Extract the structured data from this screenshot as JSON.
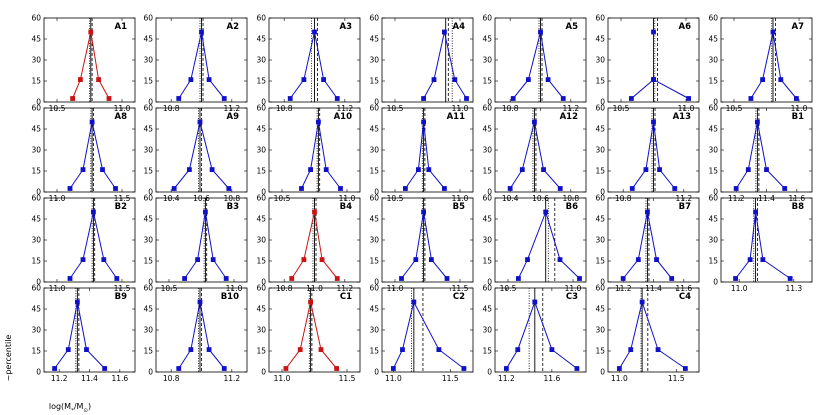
{
  "chart_data": {
    "type": "line",
    "ylabel": "~percentile",
    "ylim": [
      0,
      60
    ],
    "yticks": [
      0,
      15,
      30,
      45,
      60
    ],
    "y": [
      2.5,
      16,
      50,
      16,
      2.5
    ],
    "xlabel": {
      "pre": "log(M",
      "sub1": "*",
      "mid": "/M",
      "sub2": "⊙",
      "post": ")"
    },
    "colors": {
      "blue": "#1010c8",
      "red": "#c81414"
    },
    "panels": [
      {
        "label": "A1",
        "color": "red",
        "xlim": [
          10.4,
          11.1
        ],
        "xticks": [
          {
            "v": 10.5,
            "t": "10.5"
          },
          {
            "v": 11.0,
            "t": "11.0"
          }
        ],
        "x": [
          10.62,
          10.68,
          10.76,
          10.82,
          10.9
        ],
        "solid": 10.76,
        "dashed": 10.77,
        "dotted": 10.75
      },
      {
        "label": "A2",
        "color": "blue",
        "xlim": [
          10.7,
          11.3
        ],
        "xticks": [
          {
            "v": 10.8,
            "t": "10.8"
          },
          {
            "v": 11.2,
            "t": "11.2"
          }
        ],
        "x": [
          10.85,
          10.93,
          11.0,
          11.05,
          11.15
        ],
        "solid": 11.0,
        "dashed": 11.01,
        "dotted": 10.99
      },
      {
        "label": "A3",
        "color": "blue",
        "xlim": [
          10.7,
          11.3
        ],
        "xticks": [
          {
            "v": 10.8,
            "t": "10.8"
          },
          {
            "v": 11.2,
            "t": "11.2"
          }
        ],
        "x": [
          10.84,
          10.93,
          11.0,
          11.06,
          11.15
        ],
        "solid": 11.0,
        "dashed": 11.02,
        "dotted": 10.98
      },
      {
        "label": "A4",
        "color": "blue",
        "xlim": [
          10.4,
          11.1
        ],
        "xticks": [
          {
            "v": 10.5,
            "t": "10.5"
          },
          {
            "v": 11.0,
            "t": "11.0"
          }
        ],
        "x": [
          10.72,
          10.8,
          10.88,
          10.96,
          11.05
        ],
        "solid": 10.89,
        "dashed": 10.91,
        "dotted": 10.94
      },
      {
        "label": "A5",
        "color": "blue",
        "xlim": [
          10.7,
          11.3
        ],
        "xticks": [
          {
            "v": 10.8,
            "t": "10.8"
          },
          {
            "v": 11.2,
            "t": "11.2"
          }
        ],
        "x": [
          10.82,
          10.92,
          11.0,
          11.05,
          11.15
        ],
        "solid": 11.0,
        "dashed": 11.01,
        "dotted": 10.99
      },
      {
        "label": "A6",
        "color": "blue",
        "xlim": [
          10.4,
          11.1
        ],
        "xticks": [
          {
            "v": 10.5,
            "t": "10.5"
          },
          {
            "v": 11.0,
            "t": "11.0"
          }
        ],
        "x": [
          10.58,
          10.75,
          10.75,
          10.75,
          11.02
        ],
        "solid": 10.75,
        "dashed": 10.78,
        "dotted": 10.76
      },
      {
        "label": "A7",
        "color": "blue",
        "xlim": [
          10.4,
          11.1
        ],
        "xticks": [
          {
            "v": 10.5,
            "t": "10.5"
          },
          {
            "v": 11.0,
            "t": "11.0"
          }
        ],
        "x": [
          10.63,
          10.72,
          10.8,
          10.86,
          10.98
        ],
        "solid": 10.8,
        "dashed": 10.82,
        "dotted": 10.79
      },
      {
        "label": "A8",
        "color": "blue",
        "xlim": [
          10.9,
          11.6
        ],
        "xticks": [
          {
            "v": 11.0,
            "t": "11.0"
          },
          {
            "v": 11.5,
            "t": "11.5"
          }
        ],
        "x": [
          11.1,
          11.2,
          11.27,
          11.35,
          11.45
        ],
        "solid": 11.27,
        "dashed": 11.28,
        "dotted": 11.26
      },
      {
        "label": "A9",
        "color": "blue",
        "xlim": [
          10.3,
          10.9
        ],
        "xticks": [
          {
            "v": 10.4,
            "t": "10.4"
          },
          {
            "v": 10.6,
            "t": "10.6"
          },
          {
            "v": 10.8,
            "t": "10.8"
          }
        ],
        "x": [
          10.42,
          10.52,
          10.59,
          10.67,
          10.78
        ],
        "solid": 10.59,
        "dashed": 10.6,
        "dotted": 10.58
      },
      {
        "label": "A10",
        "color": "blue",
        "xlim": [
          10.4,
          11.1
        ],
        "xticks": [
          {
            "v": 10.5,
            "t": "10.5"
          },
          {
            "v": 11.0,
            "t": "11.0"
          }
        ],
        "x": [
          10.65,
          10.72,
          10.78,
          10.84,
          10.95
        ],
        "solid": 10.78,
        "dashed": 10.79,
        "dotted": 10.77
      },
      {
        "label": "A11",
        "color": "blue",
        "xlim": [
          10.4,
          11.1
        ],
        "xticks": [
          {
            "v": 10.5,
            "t": "10.5"
          },
          {
            "v": 11.0,
            "t": "11.0"
          }
        ],
        "x": [
          10.58,
          10.68,
          10.72,
          10.76,
          10.88
        ],
        "solid": 10.72,
        "dashed": 10.73,
        "dotted": 10.71
      },
      {
        "label": "A12",
        "color": "blue",
        "xlim": [
          10.3,
          10.9
        ],
        "xticks": [
          {
            "v": 10.4,
            "t": "10.4"
          },
          {
            "v": 10.6,
            "t": "10.6"
          },
          {
            "v": 10.8,
            "t": "10.8"
          }
        ],
        "x": [
          10.4,
          10.48,
          10.56,
          10.62,
          10.73
        ],
        "solid": 10.56,
        "dashed": 10.57,
        "dotted": 10.55
      },
      {
        "label": "A13",
        "color": "blue",
        "xlim": [
          10.7,
          11.3
        ],
        "xticks": [
          {
            "v": 10.8,
            "t": "10.8"
          },
          {
            "v": 11.2,
            "t": "11.2"
          }
        ],
        "x": [
          10.86,
          10.95,
          11.0,
          11.04,
          11.14
        ],
        "solid": 11.0,
        "dashed": 11.01,
        "dotted": 10.99
      },
      {
        "label": "B1",
        "color": "blue",
        "xlim": [
          11.1,
          11.7
        ],
        "xticks": [
          {
            "v": 11.2,
            "t": "11.2"
          },
          {
            "v": 11.4,
            "t": "11.4"
          },
          {
            "v": 11.6,
            "t": "11.6"
          }
        ],
        "x": [
          11.2,
          11.28,
          11.34,
          11.4,
          11.52
        ],
        "solid": 11.34,
        "dashed": 11.35,
        "dotted": 11.33
      },
      {
        "label": "B2",
        "color": "blue",
        "xlim": [
          10.9,
          11.6
        ],
        "xticks": [
          {
            "v": 11.0,
            "t": "11.0"
          },
          {
            "v": 11.5,
            "t": "11.5"
          }
        ],
        "x": [
          11.1,
          11.2,
          11.28,
          11.36,
          11.46
        ],
        "solid": 11.28,
        "dashed": 11.29,
        "dotted": 11.27
      },
      {
        "label": "B3",
        "color": "blue",
        "xlim": [
          10.4,
          11.1
        ],
        "xticks": [
          {
            "v": 10.5,
            "t": "10.5"
          },
          {
            "v": 11.0,
            "t": "11.0"
          }
        ],
        "x": [
          10.62,
          10.72,
          10.78,
          10.84,
          10.94
        ],
        "solid": 10.78,
        "dashed": 10.79,
        "dotted": 10.77
      },
      {
        "label": "B4",
        "color": "red",
        "xlim": [
          10.7,
          11.3
        ],
        "xticks": [
          {
            "v": 10.8,
            "t": "10.8"
          },
          {
            "v": 11.0,
            "t": "11.0"
          },
          {
            "v": 11.2,
            "t": "11.2"
          }
        ],
        "x": [
          10.85,
          10.93,
          11.0,
          11.05,
          11.15
        ],
        "solid": 11.0,
        "dashed": 11.01,
        "dotted": 10.99
      },
      {
        "label": "B5",
        "color": "blue",
        "xlim": [
          10.9,
          11.6
        ],
        "xticks": [
          {
            "v": 11.0,
            "t": "11.0"
          },
          {
            "v": 11.5,
            "t": "11.5"
          }
        ],
        "x": [
          11.05,
          11.16,
          11.22,
          11.28,
          11.4
        ],
        "solid": 11.22,
        "dashed": 11.23,
        "dotted": 11.21
      },
      {
        "label": "B6",
        "color": "blue",
        "xlim": [
          10.4,
          11.1
        ],
        "xticks": [
          {
            "v": 10.5,
            "t": "10.5"
          },
          {
            "v": 11.0,
            "t": "11.0"
          }
        ],
        "x": [
          10.58,
          10.65,
          10.79,
          10.9,
          11.05
        ],
        "solid": 10.79,
        "dashed": 10.86,
        "dotted": 10.81
      },
      {
        "label": "B7",
        "color": "blue",
        "xlim": [
          11.1,
          11.7
        ],
        "xticks": [
          {
            "v": 11.2,
            "t": "11.2"
          },
          {
            "v": 11.4,
            "t": "11.4"
          },
          {
            "v": 11.6,
            "t": "11.6"
          }
        ],
        "x": [
          11.2,
          11.3,
          11.36,
          11.42,
          11.52
        ],
        "solid": 11.36,
        "dashed": 11.37,
        "dotted": 11.35
      },
      {
        "label": "B8",
        "color": "blue",
        "xlim": [
          10.9,
          11.4
        ],
        "xticks": [
          {
            "v": 11.0,
            "t": "11.0"
          },
          {
            "v": 11.3,
            "t": "11.3"
          }
        ],
        "x": [
          10.98,
          11.06,
          11.09,
          11.13,
          11.28
        ],
        "solid": 11.09,
        "dashed": 11.1,
        "dotted": 11.08
      },
      {
        "label": "B9",
        "color": "blue",
        "xlim": [
          11.1,
          11.7
        ],
        "xticks": [
          {
            "v": 11.2,
            "t": "11.2"
          },
          {
            "v": 11.4,
            "t": "11.4"
          },
          {
            "v": 11.6,
            "t": "11.6"
          }
        ],
        "x": [
          11.17,
          11.26,
          11.32,
          11.38,
          11.5
        ],
        "solid": 11.32,
        "dashed": 11.33,
        "dotted": 11.31
      },
      {
        "label": "B10",
        "color": "blue",
        "xlim": [
          10.7,
          11.3
        ],
        "xticks": [
          {
            "v": 10.8,
            "t": "10.8"
          },
          {
            "v": 11.2,
            "t": "11.2"
          }
        ],
        "x": [
          10.85,
          10.93,
          10.99,
          11.05,
          11.15
        ],
        "solid": 10.99,
        "dashed": 11.0,
        "dotted": 10.98
      },
      {
        "label": "C1",
        "color": "red",
        "xlim": [
          10.9,
          11.6
        ],
        "xticks": [
          {
            "v": 11.0,
            "t": "11.0"
          },
          {
            "v": 11.5,
            "t": "11.5"
          }
        ],
        "x": [
          11.03,
          11.14,
          11.22,
          11.3,
          11.42
        ],
        "solid": 11.22,
        "dashed": 11.23,
        "dotted": 11.21
      },
      {
        "label": "C2",
        "color": "blue",
        "xlim": [
          10.9,
          11.7
        ],
        "xticks": [
          {
            "v": 11.0,
            "t": "11.0"
          },
          {
            "v": 11.5,
            "t": "11.5"
          }
        ],
        "x": [
          11.0,
          11.08,
          11.18,
          11.4,
          11.62
        ],
        "solid": 11.18,
        "dashed": 11.26,
        "dotted": 11.16
      },
      {
        "label": "C3",
        "color": "blue",
        "xlim": [
          11.1,
          11.9
        ],
        "xticks": [
          {
            "v": 11.2,
            "t": "11.2"
          },
          {
            "v": 11.6,
            "t": "11.6"
          }
        ],
        "x": [
          11.2,
          11.3,
          11.45,
          11.6,
          11.82
        ],
        "solid": 11.45,
        "dashed": 11.52,
        "dotted": 11.4
      },
      {
        "label": "C4",
        "color": "blue",
        "xlim": [
          10.9,
          11.7
        ],
        "xticks": [
          {
            "v": 11.0,
            "t": "11.0"
          },
          {
            "v": 11.5,
            "t": "11.5"
          }
        ],
        "x": [
          11.0,
          11.1,
          11.2,
          11.34,
          11.58
        ],
        "solid": 11.2,
        "dashed": 11.25,
        "dotted": 11.19
      }
    ]
  }
}
